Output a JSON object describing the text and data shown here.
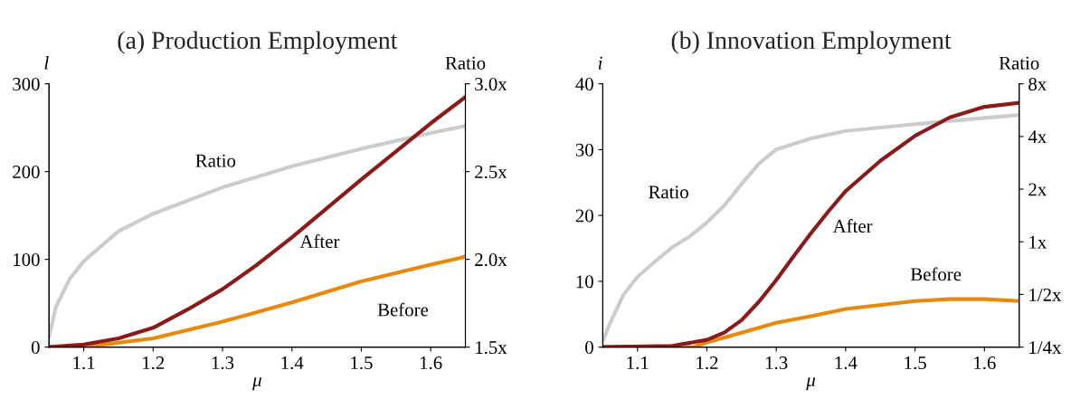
{
  "chart_data": [
    {
      "type": "line",
      "title": "(a) Production Employment",
      "xlabel": "μ",
      "ylabel": "l",
      "y2label": "Ratio",
      "xlim": [
        1.05,
        1.65
      ],
      "xticks": [
        1.1,
        1.2,
        1.3,
        1.4,
        1.5,
        1.6
      ],
      "ylim": [
        0,
        300
      ],
      "yticks": [
        0,
        100,
        200,
        300
      ],
      "y2lim": [
        1.5,
        3.0
      ],
      "y2ticks": [
        {
          "value": 1.5,
          "label": "1.5x"
        },
        {
          "value": 2.0,
          "label": "2.0x"
        },
        {
          "value": 2.5,
          "label": "2.5x"
        },
        {
          "value": 3.0,
          "label": "3.0x"
        }
      ],
      "grid": false,
      "legend": false,
      "series": [
        {
          "name": "Ratio",
          "color": "#cccccc",
          "axis": "y2",
          "x": [
            1.05,
            1.06,
            1.08,
            1.1,
            1.15,
            1.2,
            1.3,
            1.4,
            1.5,
            1.6,
            1.65
          ],
          "values": [
            1.56,
            1.73,
            1.89,
            1.99,
            2.16,
            2.26,
            2.41,
            2.53,
            2.63,
            2.72,
            2.76
          ]
        },
        {
          "name": "Before",
          "color": "#e8890c",
          "x": [
            1.05,
            1.1,
            1.2,
            1.3,
            1.4,
            1.5,
            1.6,
            1.65
          ],
          "values": [
            0,
            0,
            10,
            29,
            51,
            75,
            94,
            103
          ]
        },
        {
          "name": "After",
          "color": "#8b1a1a",
          "x": [
            1.05,
            1.1,
            1.15,
            1.2,
            1.25,
            1.3,
            1.35,
            1.4,
            1.45,
            1.5,
            1.55,
            1.6,
            1.65
          ],
          "values": [
            0,
            3,
            10,
            22,
            43,
            66,
            94,
            125,
            158,
            191,
            223,
            255,
            285
          ]
        }
      ]
    },
    {
      "type": "line",
      "title": "(b) Innovation Employment",
      "xlabel": "μ",
      "ylabel": "i",
      "y2label": "Ratio",
      "xlim": [
        1.05,
        1.65
      ],
      "xticks": [
        1.1,
        1.2,
        1.3,
        1.4,
        1.5,
        1.6
      ],
      "ylim": [
        0,
        40
      ],
      "yticks": [
        0,
        10,
        20,
        30,
        40
      ],
      "log": "y2",
      "y2lim": [
        0.25,
        8
      ],
      "y2ticks": [
        {
          "value": 0.25,
          "label": "1/4x"
        },
        {
          "value": 0.5,
          "label": "1/2x"
        },
        {
          "value": 1,
          "label": "1x"
        },
        {
          "value": 2,
          "label": "2x"
        },
        {
          "value": 4,
          "label": "4x"
        },
        {
          "value": 8,
          "label": "8x"
        }
      ],
      "grid": false,
      "legend": false,
      "series": [
        {
          "name": "Ratio",
          "color": "#cccccc",
          "axis": "y2",
          "x": [
            1.05,
            1.06,
            1.08,
            1.1,
            1.125,
            1.15,
            1.175,
            1.2,
            1.225,
            1.25,
            1.275,
            1.3,
            1.35,
            1.4,
            1.5,
            1.6,
            1.65
          ],
          "values": [
            0.27,
            0.34,
            0.5,
            0.63,
            0.77,
            0.93,
            1.07,
            1.29,
            1.61,
            2.14,
            2.8,
            3.37,
            3.9,
            4.3,
            4.7,
            5.1,
            5.3
          ]
        },
        {
          "name": "Before",
          "color": "#e8890c",
          "x": [
            1.05,
            1.18,
            1.2,
            1.25,
            1.3,
            1.35,
            1.4,
            1.5,
            1.55,
            1.6,
            1.65
          ],
          "values": [
            0,
            0,
            0.7,
            2.2,
            3.7,
            4.7,
            5.8,
            7.0,
            7.3,
            7.3,
            7.0
          ]
        },
        {
          "name": "After",
          "color": "#8b1a1a",
          "x": [
            1.05,
            1.15,
            1.2,
            1.225,
            1.25,
            1.275,
            1.3,
            1.325,
            1.35,
            1.375,
            1.4,
            1.45,
            1.5,
            1.55,
            1.6,
            1.65
          ],
          "values": [
            0,
            0.2,
            1.1,
            2.2,
            4.1,
            6.9,
            10.2,
            13.8,
            17.3,
            20.6,
            23.7,
            28.3,
            32.1,
            34.9,
            36.5,
            37.1
          ]
        }
      ]
    }
  ]
}
